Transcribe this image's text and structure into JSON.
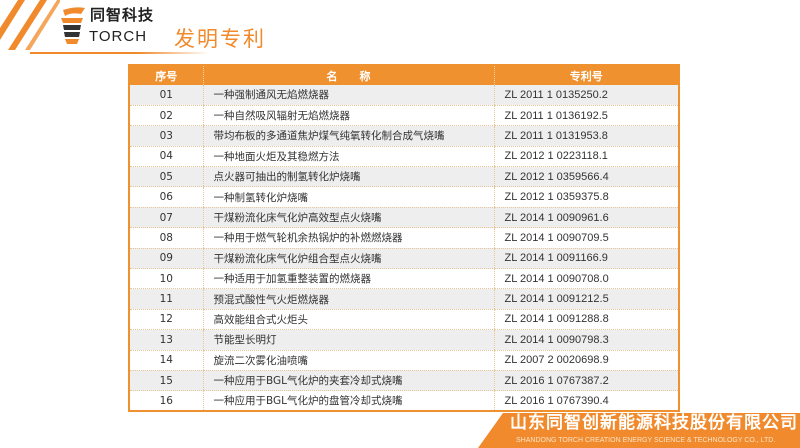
{
  "header": {
    "logo_cn": "同智科技",
    "logo_en": "TORCH",
    "title": "发明专利"
  },
  "table": {
    "columns": [
      "序号",
      "名　　称",
      "专利号"
    ],
    "rows": [
      {
        "no": "01",
        "name": "一种强制通风无焰燃烧器",
        "patent": "ZL 2011 1 0135250.2"
      },
      {
        "no": "02",
        "name": "一种自然吸风辐射无焰燃烧器",
        "patent": "ZL 2011 1 0136192.5"
      },
      {
        "no": "03",
        "name": "带均布板的多通道焦炉煤气纯氧转化制合成气烧嘴",
        "patent": "ZL 2011 1 0131953.8"
      },
      {
        "no": "04",
        "name": "一种地面火炬及其稳燃方法",
        "patent": "ZL 2012 1 0223118.1"
      },
      {
        "no": "05",
        "name": "点火器可抽出的制氢转化炉烧嘴",
        "patent": "ZL 2012 1 0359566.4"
      },
      {
        "no": "06",
        "name": "一种制氢转化炉烧嘴",
        "patent": "ZL 2012 1 0359375.8"
      },
      {
        "no": "07",
        "name": "干煤粉流化床气化炉高效型点火烧嘴",
        "patent": "ZL 2014 1 0090961.6"
      },
      {
        "no": "08",
        "name": "一种用于燃气轮机余热锅炉的补燃燃烧器",
        "patent": "ZL 2014 1 0090709.5"
      },
      {
        "no": "09",
        "name": "干煤粉流化床气化炉组合型点火烧嘴",
        "patent": "ZL 2014 1 0091166.9"
      },
      {
        "no": "10",
        "name": "一种适用于加氢重整装置的燃烧器",
        "patent": "ZL 2014 1 0090708.0"
      },
      {
        "no": "11",
        "name": "预混式酸性气火炬燃烧器",
        "patent": "ZL 2014 1 0091212.5"
      },
      {
        "no": "12",
        "name": "高效能组合式火炬头",
        "patent": "ZL 2014 1 0091288.8"
      },
      {
        "no": "13",
        "name": "节能型长明灯",
        "patent": "ZL 2014 1 0090798.3"
      },
      {
        "no": "14",
        "name": "旋流二次雾化油喷嘴",
        "patent": "ZL 2007 2 0020698.9"
      },
      {
        "no": "15",
        "name": "一种应用于BGL气化炉的夹套冷却式烧嘴",
        "patent": "ZL 2016 1 0767387.2"
      },
      {
        "no": "16",
        "name": "一种应用于BGL气化炉的盘管冷却式烧嘴",
        "patent": "ZL 2016 1 0767390.4"
      }
    ]
  },
  "footer": {
    "company_cn": "山东同智创新能源科技股份有限公司",
    "company_en": "SHANDONG TORCH CREATION ENERGY SCIENCE & TECHNOLOGY CO., LTD."
  },
  "colors": {
    "accent": "#f08a2c",
    "row_alt": "#eeeeee"
  }
}
